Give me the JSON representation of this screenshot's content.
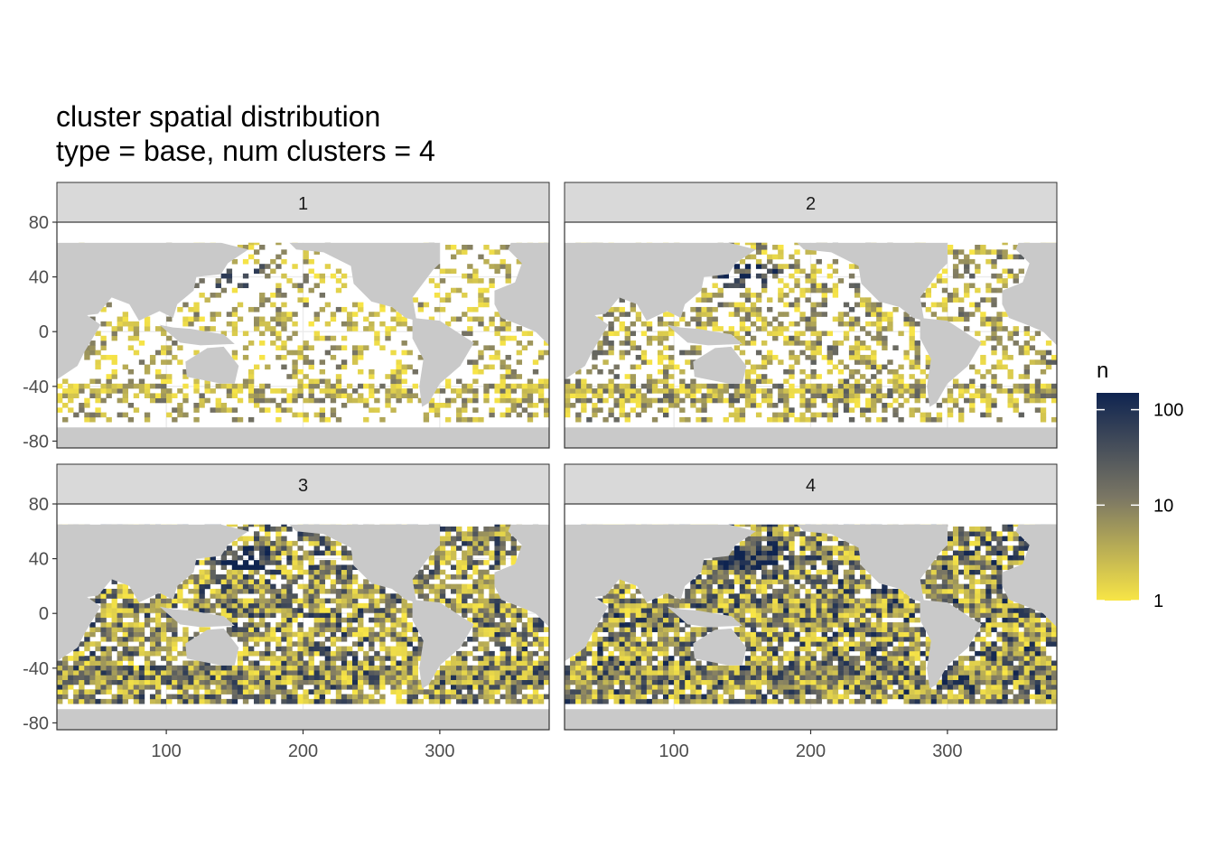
{
  "chart_data": {
    "type": "heatmap",
    "title": "cluster spatial distribution",
    "subtitle": "type = base, num clusters = 4",
    "xlabel": "",
    "ylabel": "",
    "xlim": [
      20,
      380
    ],
    "ylim": [
      -85,
      80
    ],
    "x_ticks": [
      100,
      200,
      300
    ],
    "y_ticks": [
      80,
      40,
      0,
      -40,
      -80
    ],
    "grid": true,
    "colors": {
      "land": "#c9c9c9",
      "ocean_empty": "#ffffff",
      "low": "#f8e546",
      "mid": "#7a7664",
      "high": "#0f2450",
      "strip_fill": "#d9d9d9",
      "grid": "#ebebeb"
    },
    "facets": [
      {
        "label": "1",
        "density": 0.28
      },
      {
        "label": "2",
        "density": 0.42
      },
      {
        "label": "3",
        "density": 0.78
      },
      {
        "label": "4",
        "density": 0.86
      }
    ],
    "legend": {
      "title": "n",
      "scale": "log10",
      "range": [
        1,
        150
      ],
      "breaks": [
        {
          "value": 100,
          "label": "100"
        },
        {
          "value": 10,
          "label": "10"
        },
        {
          "value": 1,
          "label": "1"
        }
      ],
      "position": "right"
    }
  }
}
